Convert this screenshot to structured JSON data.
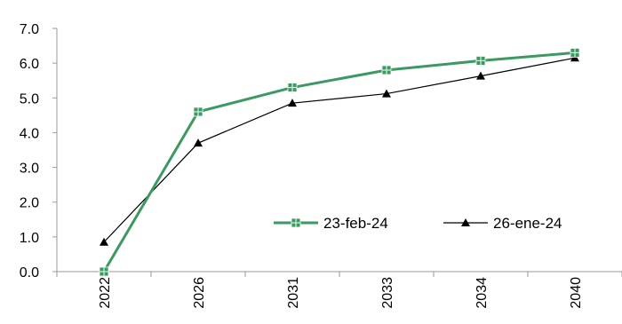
{
  "chart_data": {
    "type": "line",
    "categories": [
      "2022",
      "2026",
      "2031",
      "2033",
      "2034",
      "2040"
    ],
    "y_tick_labels": [
      "0.0",
      "1.0",
      "2.0",
      "3.0",
      "4.0",
      "5.0",
      "6.0",
      "7.0"
    ],
    "ylim": [
      0,
      7
    ],
    "grid": false,
    "legend_position": "center-right",
    "series": [
      {
        "name": "23-feb-24",
        "values": [
          0.0,
          4.6,
          5.3,
          5.8,
          6.07,
          6.3
        ],
        "color": "#3a9a62",
        "marker": "square"
      },
      {
        "name": "26-ene-24",
        "values": [
          0.85,
          3.7,
          4.85,
          5.12,
          5.63,
          6.15
        ],
        "color": "#000000",
        "marker": "triangle"
      }
    ]
  }
}
